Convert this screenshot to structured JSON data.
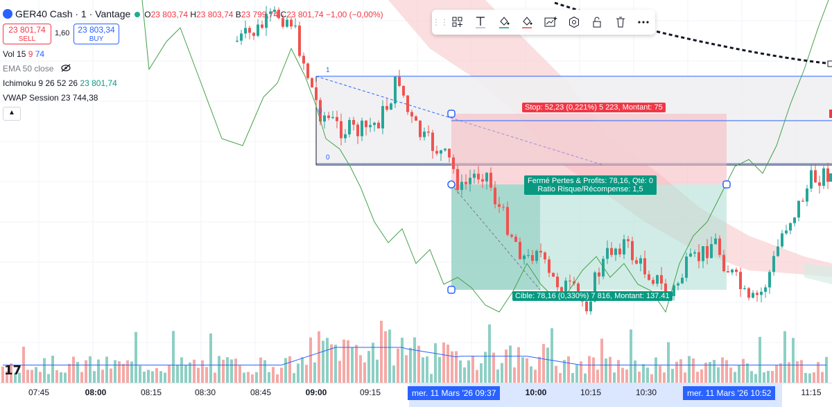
{
  "symbol": {
    "name": "GER40 Cash · 1 · Vantage",
    "open_k": "O",
    "open": "23 803,74",
    "high_k": "H",
    "high": "23 803,74",
    "low_k": "B",
    "low": "23 799,74",
    "close_k": "C",
    "close": "23 801,74",
    "change": "−1,00 (−0,00%)"
  },
  "trade": {
    "sell_price": "23 801,74",
    "sell_label": "SELL",
    "spread": "1,60",
    "buy_price": "23 803,34",
    "buy_label": "BUY"
  },
  "indicators": {
    "vol": {
      "label": "Vol 15",
      "v1": "9",
      "v2": "74",
      "v1_color": "#f23645",
      "v2_color": "#2962ff"
    },
    "ema": {
      "label": "EMA 50 close",
      "icon": "eye-off-icon"
    },
    "ichimoku": {
      "label": "Ichimoku 9 26 52 26",
      "value": "23 801,74",
      "value_color": "#089981"
    },
    "vwap": {
      "label": "VWAP Session",
      "value": "23 744,38"
    }
  },
  "collapse_icon": "chevron-up-icon",
  "toolbar": {
    "items": [
      "grid-add-icon",
      "text-icon",
      "fill-icon",
      "line-color-icon",
      "chart-add-icon",
      "settings-hex-icon",
      "unlock-icon",
      "trash-icon",
      "more-icon"
    ]
  },
  "position": {
    "stop_label": "Stop: 52,23 (0,221%) 5 223, Montant: 75",
    "pnl_line1": "Fermé Pertes & Profits: 78,16, Qté: 0",
    "pnl_line2": "Ratio Risque/Récompense: 1,5",
    "target_label": "Cible: 78,16 (0,330%) 7 816, Montant: 137.41"
  },
  "fib": {
    "level_top": "1",
    "level_mid": "0",
    "level_bottom": "0"
  },
  "colors": {
    "up": "#26a69a",
    "down": "#ef5350",
    "stop_zone": "#f8d3d6",
    "target_zone": "#cde9e4",
    "ichimoku_line": "#43a047",
    "vwap": "#2962ff"
  },
  "xaxis": {
    "ticks": [
      {
        "label": "07:45",
        "bold": false
      },
      {
        "label": "08:00",
        "bold": true
      },
      {
        "label": "08:15",
        "bold": false
      },
      {
        "label": "08:30",
        "bold": false
      },
      {
        "label": "08:45",
        "bold": false
      },
      {
        "label": "09:00",
        "bold": true
      },
      {
        "label": "09:15",
        "bold": false
      },
      {
        "label": "10:00",
        "bold": true
      },
      {
        "label": "10:15",
        "bold": false
      },
      {
        "label": "10:30",
        "bold": false
      },
      {
        "label": "11:15",
        "bold": false
      }
    ],
    "highlight_start": "mer. 11 Mars '26  09:37",
    "highlight_end": "mer. 11 Mars '26  10:52"
  },
  "logo": "17"
}
